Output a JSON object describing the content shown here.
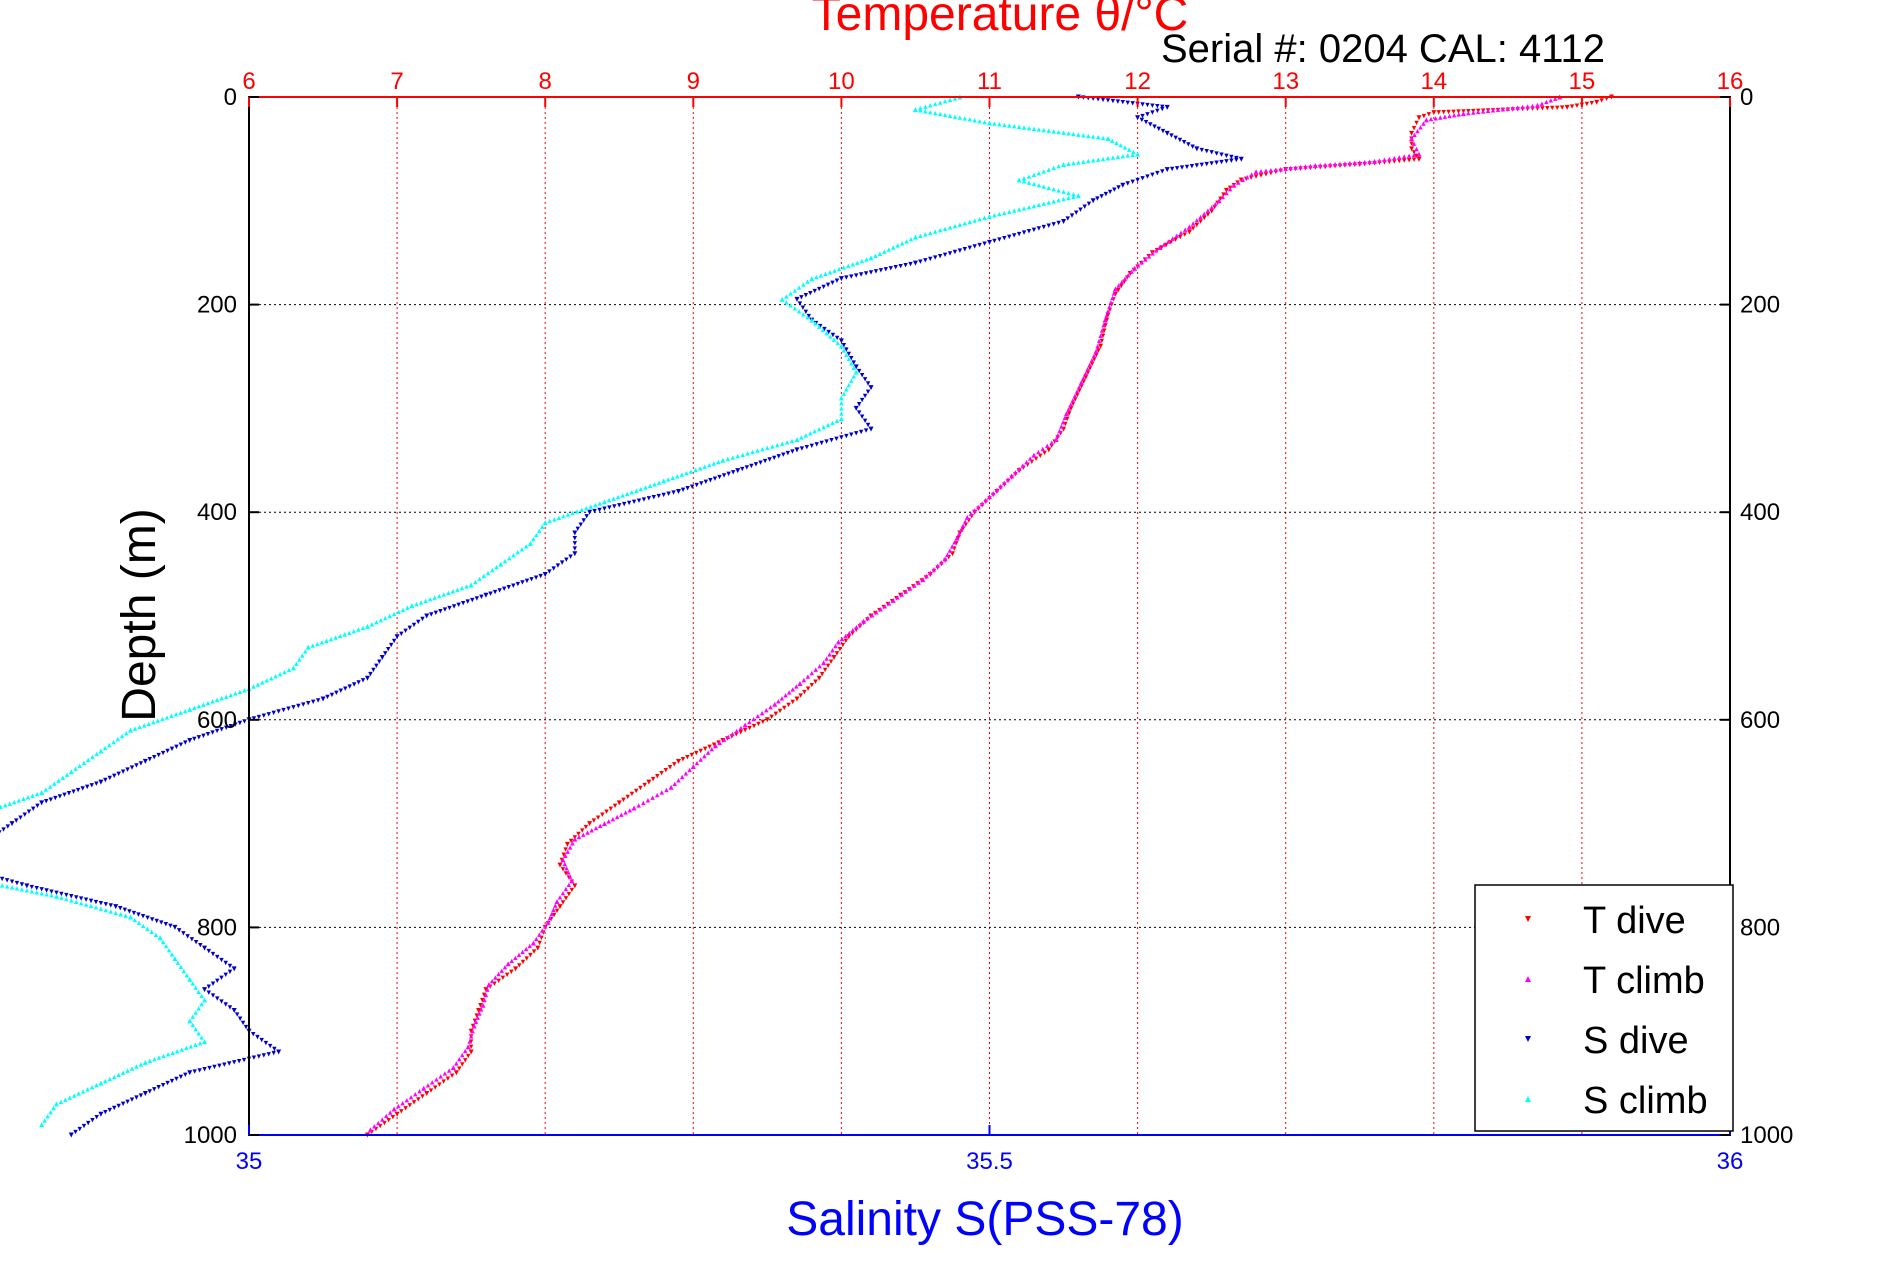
{
  "chart_data": {
    "type": "scatter",
    "title": "Temperature θ/°C",
    "subtitle": "Serial #: 0204  CAL: 4112",
    "ylabel": "Depth (m)",
    "xlabel": "Salinity S(PSS-78)",
    "y_axis": {
      "range": [
        0,
        1000
      ],
      "inverted": true,
      "ticks": [
        0,
        200,
        400,
        600,
        800,
        1000
      ],
      "tick_labels": [
        "0",
        "200",
        "400",
        "600",
        "800",
        "1000"
      ]
    },
    "x_axis_top": {
      "quantity": "temperature",
      "range": [
        6,
        16
      ],
      "ticks": [
        6,
        7,
        8,
        9,
        10,
        11,
        12,
        13,
        14,
        15,
        16
      ],
      "tick_labels": [
        "6",
        "7",
        "8",
        "9",
        "10",
        "11",
        "12",
        "13",
        "14",
        "15",
        "16"
      ],
      "color": "#ff0000",
      "vertical_grid": true
    },
    "x_axis_bottom": {
      "quantity": "salinity",
      "range": [
        35,
        36
      ],
      "ticks": [
        35,
        35.5,
        36
      ],
      "tick_labels": [
        "35",
        "35.5",
        "36"
      ],
      "color": "#0000ff"
    },
    "horizontal_grid": true,
    "legend": {
      "placement": "bottom-right",
      "entries": [
        {
          "label": "T dive",
          "color": "#ff0000",
          "marker": "triangle-down"
        },
        {
          "label": "T climb",
          "color": "#ff00ff",
          "marker": "triangle-up"
        },
        {
          "label": "S dive",
          "color": "#0000cc",
          "marker": "triangle-down"
        },
        {
          "label": "S climb",
          "color": "#00ffff",
          "marker": "triangle-up"
        }
      ]
    },
    "series": [
      {
        "name": "T dive",
        "color": "#ff0000",
        "axis": "temperature",
        "points": [
          [
            15.2,
            0
          ],
          [
            15.1,
            5
          ],
          [
            14.9,
            10
          ],
          [
            14.0,
            15
          ],
          [
            13.9,
            20
          ],
          [
            13.85,
            35
          ],
          [
            13.85,
            50
          ],
          [
            13.9,
            60
          ],
          [
            13.5,
            65
          ],
          [
            13.0,
            70
          ],
          [
            12.7,
            80
          ],
          [
            12.6,
            90
          ],
          [
            12.5,
            110
          ],
          [
            12.35,
            130
          ],
          [
            12.1,
            150
          ],
          [
            11.95,
            170
          ],
          [
            11.85,
            190
          ],
          [
            11.8,
            210
          ],
          [
            11.75,
            240
          ],
          [
            11.65,
            270
          ],
          [
            11.55,
            300
          ],
          [
            11.5,
            320
          ],
          [
            11.4,
            340
          ],
          [
            11.2,
            360
          ],
          [
            11.05,
            380
          ],
          [
            10.9,
            400
          ],
          [
            10.8,
            420
          ],
          [
            10.75,
            440
          ],
          [
            10.6,
            460
          ],
          [
            10.4,
            480
          ],
          [
            10.2,
            500
          ],
          [
            10.05,
            520
          ],
          [
            9.95,
            540
          ],
          [
            9.85,
            560
          ],
          [
            9.7,
            580
          ],
          [
            9.5,
            600
          ],
          [
            9.2,
            620
          ],
          [
            8.9,
            640
          ],
          [
            8.7,
            660
          ],
          [
            8.5,
            680
          ],
          [
            8.3,
            700
          ],
          [
            8.15,
            720
          ],
          [
            8.1,
            740
          ],
          [
            8.2,
            760
          ],
          [
            8.1,
            780
          ],
          [
            8.0,
            800
          ],
          [
            7.95,
            820
          ],
          [
            7.8,
            840
          ],
          [
            7.6,
            860
          ],
          [
            7.55,
            880
          ],
          [
            7.5,
            900
          ],
          [
            7.5,
            920
          ],
          [
            7.4,
            940
          ],
          [
            7.2,
            960
          ],
          [
            7.0,
            980
          ],
          [
            6.8,
            1000
          ]
        ]
      },
      {
        "name": "T climb",
        "color": "#ff00ff",
        "axis": "temperature",
        "points": [
          [
            14.85,
            0
          ],
          [
            14.7,
            8
          ],
          [
            14.2,
            16
          ],
          [
            13.95,
            22
          ],
          [
            13.85,
            40
          ],
          [
            13.9,
            55
          ],
          [
            13.6,
            62
          ],
          [
            13.2,
            66
          ],
          [
            12.8,
            72
          ],
          [
            12.65,
            85
          ],
          [
            12.55,
            100
          ],
          [
            12.35,
            125
          ],
          [
            12.15,
            145
          ],
          [
            11.98,
            165
          ],
          [
            11.85,
            185
          ],
          [
            11.78,
            215
          ],
          [
            11.72,
            245
          ],
          [
            11.62,
            275
          ],
          [
            11.52,
            305
          ],
          [
            11.45,
            330
          ],
          [
            11.3,
            345
          ],
          [
            11.15,
            365
          ],
          [
            11.0,
            385
          ],
          [
            10.85,
            405
          ],
          [
            10.78,
            425
          ],
          [
            10.7,
            445
          ],
          [
            10.55,
            465
          ],
          [
            10.35,
            485
          ],
          [
            10.15,
            505
          ],
          [
            9.98,
            525
          ],
          [
            9.88,
            545
          ],
          [
            9.72,
            565
          ],
          [
            9.55,
            585
          ],
          [
            9.35,
            605
          ],
          [
            9.15,
            625
          ],
          [
            9.0,
            645
          ],
          [
            8.85,
            665
          ],
          [
            8.6,
            685
          ],
          [
            8.4,
            700
          ],
          [
            8.2,
            715
          ],
          [
            8.12,
            735
          ],
          [
            8.18,
            755
          ],
          [
            8.08,
            775
          ],
          [
            8.02,
            795
          ],
          [
            7.92,
            815
          ],
          [
            7.75,
            835
          ],
          [
            7.62,
            855
          ],
          [
            7.58,
            875
          ],
          [
            7.52,
            895
          ],
          [
            7.48,
            915
          ],
          [
            7.38,
            935
          ],
          [
            7.18,
            955
          ],
          [
            6.98,
            975
          ],
          [
            6.82,
            995
          ]
        ]
      },
      {
        "name": "S dive",
        "color": "#0000cc",
        "axis": "salinity",
        "points": [
          [
            35.56,
            0
          ],
          [
            35.62,
            10
          ],
          [
            35.6,
            20
          ],
          [
            35.62,
            35
          ],
          [
            35.64,
            50
          ],
          [
            35.67,
            60
          ],
          [
            35.62,
            70
          ],
          [
            35.59,
            85
          ],
          [
            35.57,
            100
          ],
          [
            35.55,
            120
          ],
          [
            35.5,
            140
          ],
          [
            35.45,
            160
          ],
          [
            35.4,
            175
          ],
          [
            35.37,
            195
          ],
          [
            35.38,
            215
          ],
          [
            35.4,
            235
          ],
          [
            35.41,
            260
          ],
          [
            35.42,
            280
          ],
          [
            35.41,
            300
          ],
          [
            35.42,
            320
          ],
          [
            35.37,
            340
          ],
          [
            35.33,
            360
          ],
          [
            35.29,
            380
          ],
          [
            35.23,
            400
          ],
          [
            35.22,
            420
          ],
          [
            35.22,
            440
          ],
          [
            35.2,
            460
          ],
          [
            35.16,
            480
          ],
          [
            35.12,
            500
          ],
          [
            35.1,
            520
          ],
          [
            35.09,
            540
          ],
          [
            35.08,
            560
          ],
          [
            35.05,
            580
          ],
          [
            35.0,
            600
          ],
          [
            34.96,
            620
          ],
          [
            34.93,
            640
          ],
          [
            34.9,
            660
          ],
          [
            34.86,
            680
          ],
          [
            34.84,
            700
          ],
          [
            34.82,
            720
          ],
          [
            34.8,
            740
          ],
          [
            34.85,
            760
          ],
          [
            34.91,
            780
          ],
          [
            34.95,
            800
          ],
          [
            34.97,
            820
          ],
          [
            34.99,
            840
          ],
          [
            34.97,
            860
          ],
          [
            34.99,
            880
          ],
          [
            35.0,
            900
          ],
          [
            35.02,
            920
          ],
          [
            34.96,
            940
          ],
          [
            34.93,
            960
          ],
          [
            34.9,
            980
          ],
          [
            34.88,
            1000
          ]
        ]
      },
      {
        "name": "S climb",
        "color": "#00ffff",
        "axis": "salinity",
        "points": [
          [
            35.48,
            0
          ],
          [
            35.45,
            12
          ],
          [
            35.5,
            25
          ],
          [
            35.58,
            40
          ],
          [
            35.6,
            55
          ],
          [
            35.55,
            65
          ],
          [
            35.52,
            80
          ],
          [
            35.56,
            95
          ],
          [
            35.5,
            115
          ],
          [
            35.45,
            135
          ],
          [
            35.42,
            155
          ],
          [
            35.38,
            175
          ],
          [
            35.36,
            195
          ],
          [
            35.38,
            215
          ],
          [
            35.4,
            240
          ],
          [
            35.41,
            265
          ],
          [
            35.4,
            290
          ],
          [
            35.4,
            310
          ],
          [
            35.37,
            330
          ],
          [
            35.32,
            350
          ],
          [
            35.28,
            370
          ],
          [
            35.24,
            390
          ],
          [
            35.2,
            410
          ],
          [
            35.19,
            430
          ],
          [
            35.17,
            450
          ],
          [
            35.15,
            470
          ],
          [
            35.11,
            490
          ],
          [
            35.08,
            510
          ],
          [
            35.04,
            530
          ],
          [
            35.03,
            550
          ],
          [
            35.0,
            570
          ],
          [
            34.96,
            590
          ],
          [
            34.92,
            610
          ],
          [
            34.9,
            630
          ],
          [
            34.88,
            650
          ],
          [
            34.86,
            670
          ],
          [
            34.82,
            690
          ],
          [
            34.78,
            710
          ],
          [
            34.76,
            730
          ],
          [
            34.8,
            750
          ],
          [
            34.87,
            770
          ],
          [
            34.92,
            790
          ],
          [
            34.94,
            810
          ],
          [
            34.95,
            830
          ],
          [
            34.96,
            850
          ],
          [
            34.97,
            870
          ],
          [
            34.96,
            890
          ],
          [
            34.97,
            910
          ],
          [
            34.93,
            930
          ],
          [
            34.9,
            950
          ],
          [
            34.87,
            970
          ],
          [
            34.86,
            990
          ]
        ]
      }
    ]
  }
}
